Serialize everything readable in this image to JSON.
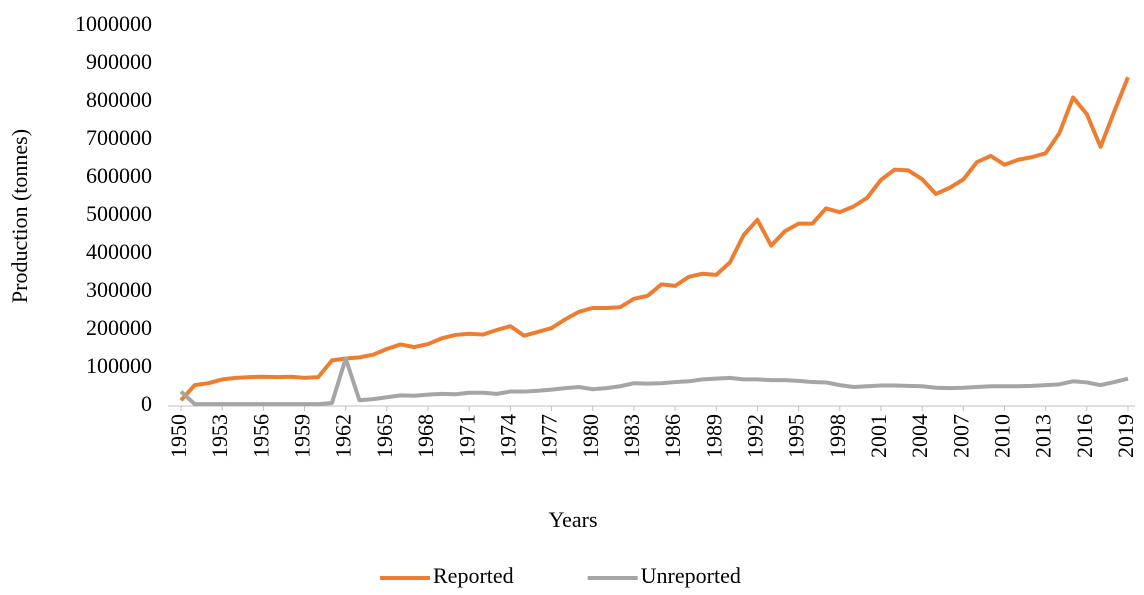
{
  "chart_data": {
    "type": "line",
    "x": [
      1950,
      1951,
      1952,
      1953,
      1954,
      1955,
      1956,
      1957,
      1958,
      1959,
      1960,
      1961,
      1962,
      1963,
      1964,
      1965,
      1966,
      1967,
      1968,
      1969,
      1970,
      1971,
      1972,
      1973,
      1974,
      1975,
      1976,
      1977,
      1978,
      1979,
      1980,
      1981,
      1982,
      1983,
      1984,
      1985,
      1986,
      1987,
      1988,
      1989,
      1990,
      1991,
      1992,
      1993,
      1994,
      1995,
      1996,
      1997,
      1998,
      1999,
      2000,
      2001,
      2002,
      2003,
      2004,
      2005,
      2006,
      2007,
      2008,
      2009,
      2010,
      2011,
      2012,
      2013,
      2014,
      2015,
      2016,
      2017,
      2018,
      2019
    ],
    "series": [
      {
        "name": "Reported",
        "color": "#ed7d31",
        "values": [
          15000,
          55000,
          60000,
          70000,
          74000,
          76000,
          77000,
          76000,
          77000,
          74000,
          76000,
          120000,
          125000,
          128000,
          135000,
          150000,
          162000,
          155000,
          163000,
          178000,
          187000,
          190000,
          188000,
          200000,
          210000,
          185000,
          195000,
          205000,
          228000,
          248000,
          258000,
          258000,
          260000,
          282000,
          290000,
          320000,
          316000,
          340000,
          348000,
          345000,
          378000,
          450000,
          490000,
          422000,
          460000,
          480000,
          480000,
          520000,
          510000,
          525000,
          548000,
          595000,
          622000,
          620000,
          597000,
          558000,
          574000,
          596000,
          642000,
          658000,
          635000,
          648000,
          655000,
          665000,
          718000,
          812000,
          768000,
          682000,
          775000,
          865000
        ]
      },
      {
        "name": "Unreported",
        "color": "#a5a5a5",
        "values": [
          38000,
          5000,
          5000,
          5000,
          5000,
          5000,
          5000,
          5000,
          5000,
          5000,
          5000,
          8000,
          125000,
          15000,
          18000,
          23000,
          28000,
          27000,
          30000,
          32000,
          31000,
          35000,
          35000,
          32000,
          38000,
          38000,
          40000,
          43000,
          47000,
          50000,
          44000,
          47000,
          52000,
          60000,
          59000,
          60000,
          63000,
          65000,
          70000,
          72000,
          74000,
          70000,
          70000,
          68000,
          68000,
          66000,
          63000,
          62000,
          55000,
          50000,
          52000,
          54000,
          54000,
          53000,
          52000,
          48000,
          47000,
          48000,
          50000,
          52000,
          52000,
          52000,
          53000,
          55000,
          57000,
          65000,
          62000,
          55000,
          63000,
          72000
        ]
      }
    ],
    "xlabel": "Years",
    "ylabel": "Production (tonnes)",
    "xlim": [
      1950,
      2019
    ],
    "xticks": [
      1950,
      1953,
      1956,
      1959,
      1962,
      1965,
      1968,
      1971,
      1974,
      1977,
      1980,
      1983,
      1986,
      1989,
      1992,
      1995,
      1998,
      2001,
      2004,
      2007,
      2010,
      2013,
      2016,
      2019
    ],
    "ylim": [
      0,
      1000000
    ],
    "yticks": [
      0,
      100000,
      200000,
      300000,
      400000,
      500000,
      600000,
      700000,
      800000,
      900000,
      1000000
    ],
    "legend": "bottom"
  }
}
